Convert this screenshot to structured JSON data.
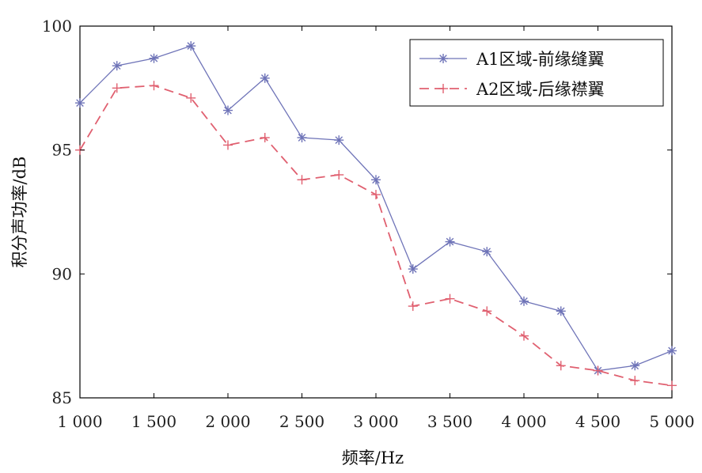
{
  "chart_data": {
    "type": "line",
    "xlabel": "频率/Hz",
    "ylabel": "积分声功率/dB",
    "xlim": [
      1000,
      5000
    ],
    "ylim": [
      85,
      100
    ],
    "x_ticks": [
      1000,
      1500,
      2000,
      2500,
      3000,
      3500,
      4000,
      4500,
      5000
    ],
    "x_tick_labels": [
      "1 000",
      "1 500",
      "2 000",
      "2 500",
      "3 000",
      "3 500",
      "4 000",
      "4 500",
      "5 000"
    ],
    "y_ticks": [
      85,
      90,
      95,
      100
    ],
    "y_tick_labels": [
      "85",
      "90",
      "95",
      "100"
    ],
    "grid": false,
    "legend_position": "top-right",
    "x": [
      1000,
      1250,
      1500,
      1750,
      2000,
      2250,
      2500,
      2750,
      3000,
      3250,
      3500,
      3750,
      4000,
      4250,
      4500,
      4750,
      5000
    ],
    "series": [
      {
        "name": "A1区域-前缘缝翼",
        "color": "#6f74b8",
        "marker": "star",
        "line_style": "solid",
        "values": [
          96.9,
          98.4,
          98.7,
          99.2,
          96.6,
          97.9,
          95.5,
          95.4,
          93.8,
          90.2,
          91.3,
          90.9,
          88.9,
          88.5,
          86.1,
          86.3,
          86.9
        ]
      },
      {
        "name": "A2区域-后缘襟翼",
        "color": "#e06070",
        "marker": "plus",
        "line_style": "dashed",
        "values": [
          95.0,
          97.5,
          97.6,
          97.1,
          95.2,
          95.5,
          93.8,
          94.0,
          93.2,
          88.7,
          89.0,
          88.5,
          87.5,
          86.3,
          86.1,
          85.7,
          85.5
        ]
      }
    ]
  }
}
